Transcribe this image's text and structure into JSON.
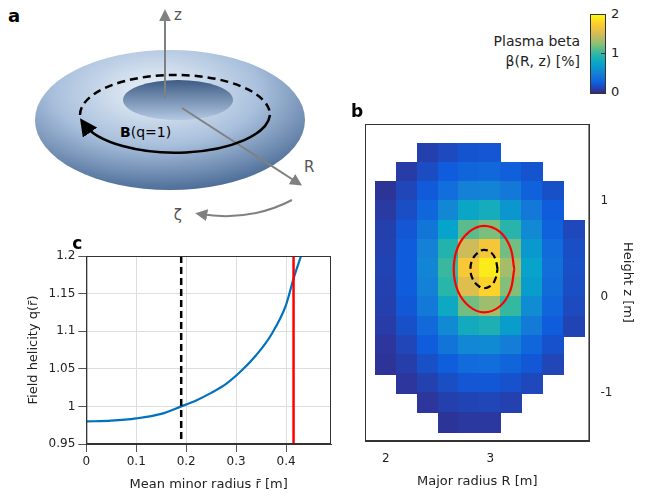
{
  "chart_data": [
    {
      "panel": "c",
      "type": "line",
      "x_label": "Mean minor radius r̄ [m]",
      "y_label": "Field helicity q(r̄)",
      "x": [
        0,
        0.05,
        0.1,
        0.15,
        0.19,
        0.22,
        0.25,
        0.28,
        0.31,
        0.34,
        0.37,
        0.4,
        0.415,
        0.43
      ],
      "values": [
        0.98,
        0.981,
        0.984,
        0.99,
        1.0,
        1.008,
        1.018,
        1.03,
        1.047,
        1.068,
        1.095,
        1.135,
        1.17,
        1.2
      ],
      "color": "#0072bd",
      "xlim": [
        0,
        0.49
      ],
      "xticks": [
        0,
        0.1,
        0.2,
        0.3,
        0.4
      ],
      "ylim": [
        0.95,
        1.2
      ],
      "yticks": [
        0.95,
        1,
        1.05,
        1.1,
        1.15,
        1.2
      ],
      "grid": true,
      "vlines": [
        {
          "x": 0.19,
          "color": "#000000",
          "line_style": "dashed"
        },
        {
          "x": 0.415,
          "color": "#ff0000",
          "line_style": "solid"
        }
      ]
    },
    {
      "panel": "b",
      "type": "heatmap",
      "x_label": "Major radius R [m]",
      "y_label": "Height z [m]",
      "R": [
        2.0,
        2.2,
        2.4,
        2.6,
        2.8,
        3.0,
        3.2,
        3.4,
        3.6,
        3.8
      ],
      "z": [
        1.5,
        1.3,
        1.1,
        0.9,
        0.7,
        0.5,
        0.3,
        0.1,
        -0.1,
        -0.3,
        -0.5,
        -0.7,
        -0.9,
        -1.1,
        -1.3
      ],
      "beta": [
        [
          null,
          null,
          0.11,
          0.16,
          0.21,
          0.22,
          null,
          null,
          null,
          null
        ],
        [
          null,
          0.09,
          0.17,
          0.25,
          0.31,
          0.33,
          0.28,
          0.21,
          null,
          null
        ],
        [
          0.05,
          0.14,
          0.24,
          0.37,
          0.5,
          0.52,
          0.44,
          0.29,
          0.19,
          null
        ],
        [
          0.08,
          0.18,
          0.32,
          0.54,
          0.78,
          0.85,
          0.66,
          0.44,
          0.25,
          null
        ],
        [
          0.11,
          0.22,
          0.42,
          0.75,
          1.12,
          1.22,
          0.96,
          0.56,
          0.29,
          0.15
        ],
        [
          0.12,
          0.25,
          0.5,
          0.94,
          1.49,
          1.7,
          1.19,
          0.67,
          0.35,
          0.18
        ],
        [
          0.13,
          0.26,
          0.53,
          1.03,
          1.73,
          1.92,
          1.35,
          0.74,
          0.38,
          0.19
        ],
        [
          0.12,
          0.26,
          0.51,
          0.97,
          1.57,
          1.8,
          1.24,
          0.7,
          0.36,
          0.18
        ],
        [
          0.11,
          0.23,
          0.44,
          0.8,
          1.19,
          1.33,
          1.02,
          0.58,
          0.31,
          0.16
        ],
        [
          0.09,
          0.19,
          0.34,
          0.56,
          0.83,
          0.9,
          0.7,
          0.46,
          0.26,
          0.13
        ],
        [
          0.06,
          0.14,
          0.26,
          0.41,
          0.54,
          0.57,
          0.48,
          0.32,
          0.2,
          null
        ],
        [
          0.05,
          0.1,
          0.19,
          0.27,
          0.35,
          0.37,
          0.31,
          0.23,
          0.14,
          null
        ],
        [
          null,
          0.06,
          0.12,
          0.18,
          0.22,
          0.23,
          0.2,
          0.15,
          null,
          null
        ],
        [
          null,
          null,
          0.06,
          0.11,
          0.13,
          0.14,
          0.12,
          null,
          null,
          null
        ],
        [
          null,
          null,
          null,
          0.05,
          0.07,
          0.07,
          null,
          null,
          null,
          null
        ]
      ],
      "colorbar_title": [
        "Plasma beta",
        "β(R, z) [%]"
      ],
      "colorbar_lim": [
        0,
        2
      ],
      "colorbar_ticks": [
        0,
        1,
        2
      ],
      "xlim": [
        1.8,
        3.95
      ],
      "xticks": [
        2,
        3
      ],
      "ylim": [
        -1.5,
        1.8
      ],
      "yticks": [
        -1,
        0,
        1
      ],
      "grid": false,
      "contours": [
        {
          "color": "#ff0000",
          "line_style": "solid",
          "R": [
            3.23,
            3.19,
            3.09,
            2.94,
            2.8,
            2.69,
            2.65,
            2.69,
            2.8,
            2.94,
            3.09,
            3.19,
            3.23
          ],
          "z": [
            0.29,
            0.52,
            0.68,
            0.74,
            0.68,
            0.52,
            0.29,
            0.06,
            -0.1,
            -0.16,
            -0.1,
            0.06,
            0.29
          ]
        },
        {
          "color": "#000000",
          "line_style": "dashed",
          "R": [
            3.07,
            3.05,
            3.01,
            2.94,
            2.88,
            2.83,
            2.81,
            2.83,
            2.88,
            2.94,
            3.01,
            3.05,
            3.07
          ],
          "z": [
            0.29,
            0.39,
            0.46,
            0.49,
            0.46,
            0.39,
            0.29,
            0.19,
            0.12,
            0.09,
            0.12,
            0.19,
            0.29
          ]
        }
      ]
    }
  ],
  "diagram": {
    "panel": "a",
    "axes": [
      "z",
      "R",
      "ζ"
    ],
    "field_label": "B(q=1)"
  }
}
